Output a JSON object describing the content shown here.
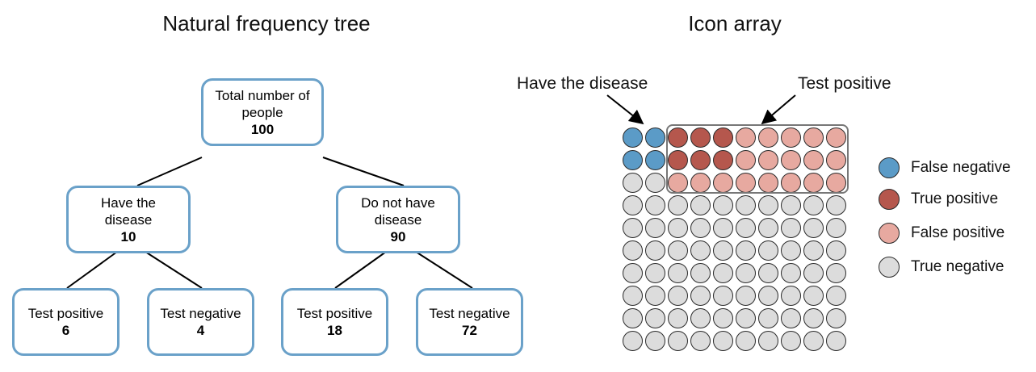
{
  "tree": {
    "title": "Natural frequency tree",
    "root": {
      "line1": "Total number of",
      "line2": "people",
      "count": "100"
    },
    "have": {
      "line1": "Have the",
      "line2": "disease",
      "count": "10"
    },
    "not_have": {
      "line1": "Do not have",
      "line2": "disease",
      "count": "90"
    },
    "have_pos": {
      "label": "Test positive",
      "count": "6"
    },
    "have_neg": {
      "label": "Test negative",
      "count": "4"
    },
    "not_pos": {
      "label": "Test positive",
      "count": "18"
    },
    "not_neg": {
      "label": "Test negative",
      "count": "72"
    },
    "node_border_color": "#6aa1c9"
  },
  "icon_array": {
    "title": "Icon array",
    "annotation_disease": "Have the disease",
    "annotation_positive": "Test positive",
    "rows": 10,
    "cols": 10,
    "grid": [
      [
        "FN",
        "FN",
        "TP",
        "TP",
        "TP",
        "FP",
        "FP",
        "FP",
        "FP",
        "FP"
      ],
      [
        "FN",
        "FN",
        "TP",
        "TP",
        "TP",
        "FP",
        "FP",
        "FP",
        "FP",
        "FP"
      ],
      [
        "TN",
        "TN",
        "FP",
        "FP",
        "FP",
        "FP",
        "FP",
        "FP",
        "FP",
        "FP"
      ],
      [
        "TN",
        "TN",
        "TN",
        "TN",
        "TN",
        "TN",
        "TN",
        "TN",
        "TN",
        "TN"
      ],
      [
        "TN",
        "TN",
        "TN",
        "TN",
        "TN",
        "TN",
        "TN",
        "TN",
        "TN",
        "TN"
      ],
      [
        "TN",
        "TN",
        "TN",
        "TN",
        "TN",
        "TN",
        "TN",
        "TN",
        "TN",
        "TN"
      ],
      [
        "TN",
        "TN",
        "TN",
        "TN",
        "TN",
        "TN",
        "TN",
        "TN",
        "TN",
        "TN"
      ],
      [
        "TN",
        "TN",
        "TN",
        "TN",
        "TN",
        "TN",
        "TN",
        "TN",
        "TN",
        "TN"
      ],
      [
        "TN",
        "TN",
        "TN",
        "TN",
        "TN",
        "TN",
        "TN",
        "TN",
        "TN",
        "TN"
      ],
      [
        "TN",
        "TN",
        "TN",
        "TN",
        "TN",
        "TN",
        "TN",
        "TN",
        "TN",
        "TN"
      ]
    ],
    "colors": {
      "FN": "#5b9bc7",
      "TP": "#b5574d",
      "FP": "#e7a9a0",
      "TN": "#dcdcdc"
    }
  },
  "legend": [
    {
      "key": "FN",
      "label": "False negative",
      "color": "#5b9bc7"
    },
    {
      "key": "TP",
      "label": "True positive",
      "color": "#b5574d"
    },
    {
      "key": "FP",
      "label": "False positive",
      "color": "#e7a9a0"
    },
    {
      "key": "TN",
      "label": "True negative",
      "color": "#dcdcdc"
    }
  ]
}
